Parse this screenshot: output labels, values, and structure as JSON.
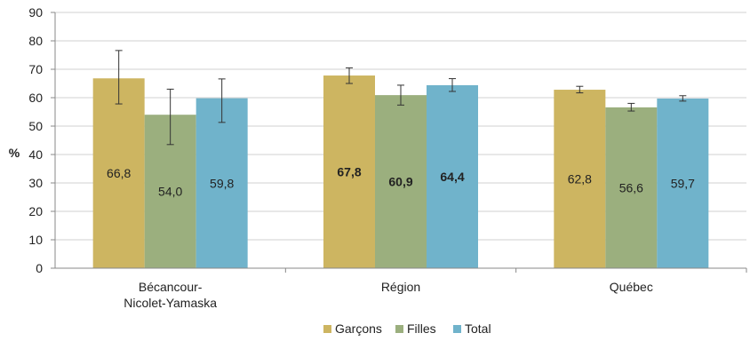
{
  "chart_data": {
    "type": "bar",
    "ylabel": "%",
    "ylim": [
      0,
      90
    ],
    "yticks": [
      0,
      10,
      20,
      30,
      40,
      50,
      60,
      70,
      80,
      90
    ],
    "categories": [
      [
        "Bécancour-",
        "Nicolet-Yamaska"
      ],
      [
        "Région"
      ],
      [
        "Québec"
      ]
    ],
    "series": [
      {
        "name": "Garçons",
        "color": "#CDB561",
        "values": [
          66.8,
          67.8,
          62.8
        ],
        "labels": [
          "66,8",
          "67,8",
          "62,8"
        ],
        "bold": [
          false,
          true,
          false
        ],
        "error": [
          [
            57.8,
            76.6
          ],
          [
            65.0,
            70.5
          ],
          [
            61.7,
            64.0
          ]
        ]
      },
      {
        "name": "Filles",
        "color": "#9BAF7E",
        "values": [
          54.0,
          60.9,
          56.6
        ],
        "labels": [
          "54,0",
          "60,9",
          "56,6"
        ],
        "bold": [
          false,
          true,
          false
        ],
        "error": [
          [
            43.5,
            63.0
          ],
          [
            57.4,
            64.4
          ],
          [
            55.3,
            58.0
          ]
        ]
      },
      {
        "name": "Total",
        "color": "#70B3CB",
        "values": [
          59.8,
          64.4,
          59.7
        ],
        "labels": [
          "59,8",
          "64,4",
          "59,7"
        ],
        "bold": [
          false,
          true,
          false
        ],
        "error": [
          [
            51.3,
            66.6
          ],
          [
            62.2,
            66.7
          ],
          [
            58.8,
            60.7
          ]
        ]
      }
    ],
    "grid": true,
    "legend": "bottom"
  }
}
